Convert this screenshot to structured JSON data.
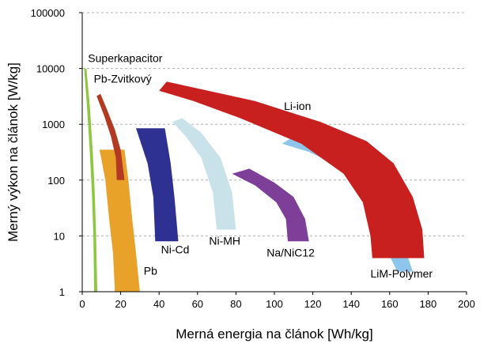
{
  "chart_data": {
    "type": "area",
    "xlabel": "Merná energia na článok [Wh/kg]",
    "ylabel": "Merný výkon na článok [W/kg]",
    "xlim": [
      0,
      200
    ],
    "ylim": [
      1,
      100000
    ],
    "yscale": "log",
    "grid": true,
    "x_ticks": [
      "0",
      "20",
      "40",
      "60",
      "80",
      "100",
      "120",
      "140",
      "160",
      "180",
      "200"
    ],
    "y_ticks": [
      "1",
      "10",
      "100",
      "1000",
      "10000",
      "100000"
    ],
    "series": [
      {
        "name": "Superkapacitor",
        "color": "#8DC63F",
        "band": [
          {
            "x": 1,
            "y": 10000
          },
          {
            "x": 2.5,
            "y": 2000
          },
          {
            "x": 4,
            "y": 300
          },
          {
            "x": 5,
            "y": 60
          },
          {
            "x": 5.8,
            "y": 10
          },
          {
            "x": 6.2,
            "y": 1
          },
          {
            "x": 7.8,
            "y": 1
          },
          {
            "x": 7.2,
            "y": 10
          },
          {
            "x": 6.5,
            "y": 60
          },
          {
            "x": 5.5,
            "y": 300
          },
          {
            "x": 4,
            "y": 2000
          },
          {
            "x": 2.2,
            "y": 10000
          }
        ]
      },
      {
        "name": "Pb",
        "color": "#E8A22A",
        "band": [
          {
            "x": 9,
            "y": 350
          },
          {
            "x": 22,
            "y": 350
          },
          {
            "x": 24,
            "y": 100
          },
          {
            "x": 26,
            "y": 20
          },
          {
            "x": 28,
            "y": 5
          },
          {
            "x": 30,
            "y": 1
          },
          {
            "x": 17,
            "y": 1
          },
          {
            "x": 16,
            "y": 5
          },
          {
            "x": 14,
            "y": 20
          },
          {
            "x": 12,
            "y": 100
          }
        ]
      },
      {
        "name": "Pb-Zvitkový",
        "color": "#B23A22",
        "band": [
          {
            "x": 7.5,
            "y": 3200
          },
          {
            "x": 9.5,
            "y": 3500
          },
          {
            "x": 13,
            "y": 1800
          },
          {
            "x": 17,
            "y": 800
          },
          {
            "x": 20,
            "y": 350
          },
          {
            "x": 22,
            "y": 100
          },
          {
            "x": 18,
            "y": 100
          },
          {
            "x": 17.5,
            "y": 250
          },
          {
            "x": 15,
            "y": 600
          },
          {
            "x": 11.5,
            "y": 1400
          }
        ]
      },
      {
        "name": "Ni-Cd",
        "color": "#2E3192",
        "band": [
          {
            "x": 28,
            "y": 850
          },
          {
            "x": 43,
            "y": 850
          },
          {
            "x": 46,
            "y": 200
          },
          {
            "x": 48,
            "y": 50
          },
          {
            "x": 50,
            "y": 8
          },
          {
            "x": 38,
            "y": 8
          },
          {
            "x": 37,
            "y": 50
          },
          {
            "x": 34,
            "y": 200
          }
        ]
      },
      {
        "name": "Ni-MH",
        "color": "#C9E2EA",
        "band": [
          {
            "x": 47,
            "y": 1100
          },
          {
            "x": 52,
            "y": 1300
          },
          {
            "x": 62,
            "y": 700
          },
          {
            "x": 72,
            "y": 250
          },
          {
            "x": 78,
            "y": 60
          },
          {
            "x": 80,
            "y": 13
          },
          {
            "x": 70,
            "y": 13
          },
          {
            "x": 68,
            "y": 60
          },
          {
            "x": 62,
            "y": 250
          },
          {
            "x": 54,
            "y": 600
          }
        ]
      },
      {
        "name": "Na/NiC12",
        "color": "#7E3F98",
        "band": [
          {
            "x": 78,
            "y": 130
          },
          {
            "x": 87,
            "y": 160
          },
          {
            "x": 100,
            "y": 90
          },
          {
            "x": 110,
            "y": 50
          },
          {
            "x": 116,
            "y": 20
          },
          {
            "x": 118,
            "y": 8
          },
          {
            "x": 107,
            "y": 8
          },
          {
            "x": 106,
            "y": 20
          },
          {
            "x": 101,
            "y": 40
          },
          {
            "x": 90,
            "y": 80
          }
        ]
      },
      {
        "name": "LiM-Polymer",
        "color": "#8EC5EA",
        "band": [
          {
            "x": 104,
            "y": 450
          },
          {
            "x": 110,
            "y": 600
          },
          {
            "x": 130,
            "y": 400
          },
          {
            "x": 148,
            "y": 170
          },
          {
            "x": 162,
            "y": 35
          },
          {
            "x": 168,
            "y": 6
          },
          {
            "x": 172,
            "y": 2.3
          },
          {
            "x": 164,
            "y": 2.3
          },
          {
            "x": 158,
            "y": 6
          },
          {
            "x": 152,
            "y": 35
          },
          {
            "x": 138,
            "y": 150
          },
          {
            "x": 118,
            "y": 320
          }
        ]
      },
      {
        "name": "Li-ion",
        "color": "#C8201E",
        "band": [
          {
            "x": 40,
            "y": 4000
          },
          {
            "x": 44,
            "y": 5800
          },
          {
            "x": 90,
            "y": 2600
          },
          {
            "x": 124,
            "y": 1100
          },
          {
            "x": 148,
            "y": 500
          },
          {
            "x": 162,
            "y": 200
          },
          {
            "x": 172,
            "y": 50
          },
          {
            "x": 177,
            "y": 13
          },
          {
            "x": 178,
            "y": 4
          },
          {
            "x": 151,
            "y": 4
          },
          {
            "x": 150,
            "y": 10
          },
          {
            "x": 146,
            "y": 40
          },
          {
            "x": 136,
            "y": 130
          },
          {
            "x": 114,
            "y": 450
          },
          {
            "x": 82,
            "y": 1300
          },
          {
            "x": 58,
            "y": 2600
          }
        ]
      }
    ]
  }
}
